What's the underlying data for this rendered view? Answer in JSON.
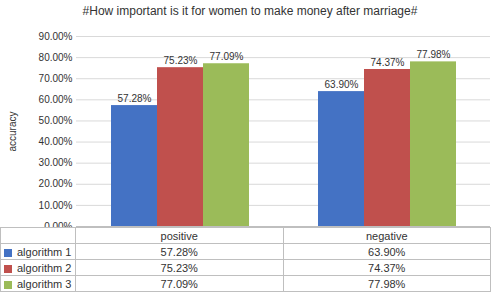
{
  "chart_data": {
    "type": "bar",
    "title": "#How important is it for women to make money after marriage#",
    "y_label": "accuracy",
    "categories": [
      "positive",
      "negative"
    ],
    "series": [
      {
        "name": "algorithm 1",
        "color": "#4472c4",
        "values": [
          57.28,
          63.9
        ],
        "value_labels": [
          "57.28%",
          "63.90%"
        ]
      },
      {
        "name": "algorithm 2",
        "color": "#c0504d",
        "values": [
          75.23,
          74.37
        ],
        "value_labels": [
          "75.23%",
          "74.37%"
        ]
      },
      {
        "name": "algorithm 3",
        "color": "#9bbb59",
        "values": [
          77.09,
          77.98
        ],
        "value_labels": [
          "77.09%",
          "77.98%"
        ]
      }
    ],
    "ylim": [
      0,
      90
    ],
    "yticks": [
      {
        "value": 0,
        "label": "0.00%"
      },
      {
        "value": 10,
        "label": "10.00%"
      },
      {
        "value": 20,
        "label": "20.00%"
      },
      {
        "value": 30,
        "label": "30.00%"
      },
      {
        "value": 40,
        "label": "40.00%"
      },
      {
        "value": 50,
        "label": "50.00%"
      },
      {
        "value": 60,
        "label": "60.00%"
      },
      {
        "value": 70,
        "label": "70.00%"
      },
      {
        "value": 80,
        "label": "80.00%"
      },
      {
        "value": 90,
        "label": "90.00%"
      }
    ],
    "grid": true,
    "data_labels": true,
    "tick_labels": "y",
    "legend": "bottom"
  }
}
